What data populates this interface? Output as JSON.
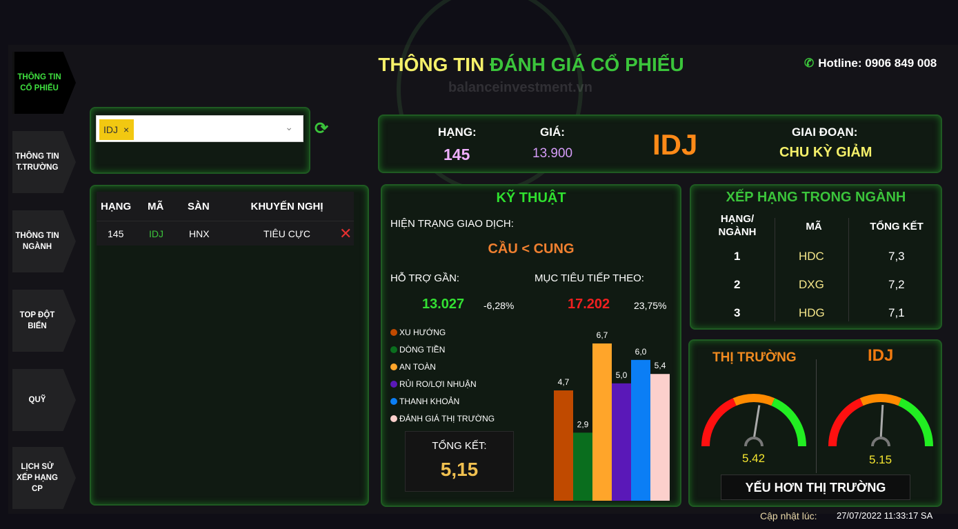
{
  "header": {
    "title_part1": "THÔNG TIN",
    "title_part2": "ĐÁNH GIÁ CỔ PHIẾU",
    "hotline": "Hotline: 0906 849 008",
    "watermark": "balanceinvestment.vn"
  },
  "nav": [
    {
      "label": "THÔNG TIN CỔ PHIẾU",
      "active": true
    },
    {
      "label": "THÔNG TIN T.TRƯỜNG"
    },
    {
      "label": "THÔNG TIN NGÀNH"
    },
    {
      "label": "TOP ĐỘT BIẾN"
    },
    {
      "label": "QUỸ"
    },
    {
      "label": "LỊCH SỬ XẾP HẠNG CP"
    }
  ],
  "search": {
    "selected": "IDJ"
  },
  "table": {
    "headers": [
      "HẠNG",
      "MÃ",
      "SÀN",
      "KHUYẾN NGHỊ"
    ],
    "rows": [
      {
        "rank": "145",
        "code": "IDJ",
        "exchange": "HNX",
        "recommendation": "TIÊU CỰC"
      }
    ]
  },
  "summary": {
    "rank_label": "HẠNG:",
    "rank": "145",
    "price_label": "GIÁ:",
    "price": "13.900",
    "ticker": "IDJ",
    "stage_label": "GIAI ĐOẠN:",
    "stage": "CHU KỲ GIẢM"
  },
  "technical": {
    "title": "KỸ THUẬT",
    "status_label": "HIỆN TRẠNG GIAO DỊCH:",
    "status": "CẦU < CUNG",
    "support_label": "HỖ TRỢ GẦN:",
    "support": "13.027",
    "support_pct": "-6,28%",
    "target_label": "MỤC TIÊU TIẾP THEO:",
    "target": "17.202",
    "target_pct": "23,75%",
    "total_label": "TỔNG KẾT:",
    "total": "5,15"
  },
  "chart_data": {
    "type": "bar",
    "categories": [
      "XU HƯỚNG",
      "DÒNG TIỀN",
      "AN TOÀN",
      "RỦI RO/LỢI NHUẬN",
      "THANH KHOẢN",
      "ĐÁNH GIÁ THỊ TRƯỜNG"
    ],
    "values": [
      4.7,
      2.9,
      6.7,
      5.0,
      6.0,
      5.4
    ],
    "labels": [
      "4,7",
      "2,9",
      "6,7",
      "5,0",
      "6,0",
      "5,4"
    ],
    "colors": [
      "#c04a00",
      "#0a6e1e",
      "#ffa52a",
      "#5a18b8",
      "#0b7ef5",
      "#fcd0cc"
    ],
    "ylim": [
      0,
      6.7
    ]
  },
  "ranking": {
    "title": "XẾP HẠNG TRONG NGÀNH",
    "headers": [
      "HẠNG/ NGÀNH",
      "MÃ",
      "TỔNG KẾT"
    ],
    "rows": [
      {
        "rank": "1",
        "code": "HDC",
        "score": "7,3"
      },
      {
        "rank": "2",
        "code": "DXG",
        "score": "7,2"
      },
      {
        "rank": "3",
        "code": "HDG",
        "score": "7,1"
      }
    ]
  },
  "gauges": {
    "market_title": "THỊ TRƯỜNG",
    "market_value": "5.42",
    "stock_title": "IDJ",
    "stock_value": "5.15",
    "range": [
      0,
      10
    ],
    "verdict": "YẾU HƠN THỊ TRƯỜNG"
  },
  "footer": {
    "label": "Cập nhật lúc:",
    "timestamp": "27/07/2022 11:33:17 SA"
  }
}
